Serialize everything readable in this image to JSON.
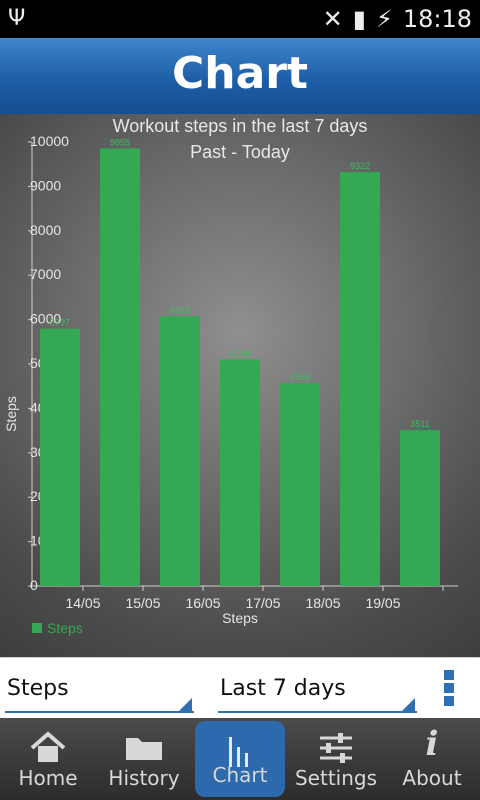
{
  "status_bar": {
    "time": "18:18"
  },
  "header": {
    "title": "Chart"
  },
  "chart_data": {
    "type": "bar",
    "title": "Workout steps in the last 7 days",
    "subtitle": "Past - Today",
    "xlabel": "Steps",
    "ylabel": "Steps",
    "ylim": [
      0,
      10000
    ],
    "y_ticks": [
      "0",
      "1000",
      "2000",
      "3000",
      "4000",
      "5000",
      "6000",
      "7000",
      "8000",
      "9000",
      "10000"
    ],
    "categories": [
      "14/05",
      "15/05",
      "16/05",
      "17/05",
      "18/05",
      "19/05",
      ""
    ],
    "series": [
      {
        "name": "Steps",
        "values": [
          5797,
          9855,
          6073,
          5104,
          4569,
          9322,
          3511
        ],
        "labels": [
          "5797",
          "9855",
          "6073",
          "5104",
          "4569",
          "9322",
          "3511"
        ]
      }
    ],
    "legend": "bottom-left",
    "grid": false
  },
  "controls": {
    "metric_value": "Steps",
    "range_value": "Last 7 days"
  },
  "colors": {
    "bar": "#34a853",
    "header_blue": "#2c6aad"
  },
  "tabs": [
    {
      "label": "Home",
      "icon": "home-icon"
    },
    {
      "label": "History",
      "icon": "folder-icon"
    },
    {
      "label": "Chart",
      "icon": "chart-icon"
    },
    {
      "label": "Settings",
      "icon": "sliders-icon"
    },
    {
      "label": "About",
      "icon": "info-icon"
    }
  ]
}
